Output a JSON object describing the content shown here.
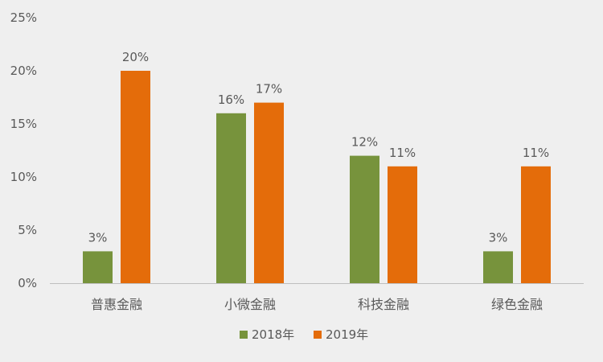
{
  "chart_data": {
    "type": "bar",
    "categories": [
      "普惠金融",
      "小微金融",
      "科技金融",
      "绿色金融"
    ],
    "series": [
      {
        "name": "2018年",
        "values": [
          3,
          16,
          12,
          3
        ],
        "color": "#77933c"
      },
      {
        "name": "2019年",
        "values": [
          20,
          17,
          11,
          11
        ],
        "color": "#e46c0a"
      }
    ],
    "ylim": [
      0,
      25
    ],
    "yticks": [
      0,
      5,
      10,
      15,
      20,
      25
    ],
    "tick_suffix": "%",
    "data_labels": {
      "2018年": [
        "3%",
        "16%",
        "12%",
        "3%"
      ],
      "2019年": [
        "20%",
        "17%",
        "11%",
        "11%"
      ]
    },
    "grid": false,
    "legend_position": "bottom"
  }
}
